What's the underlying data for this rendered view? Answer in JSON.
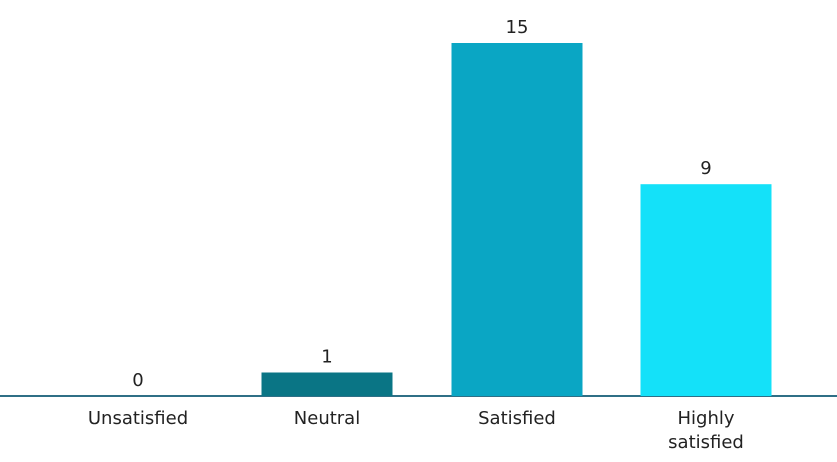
{
  "chart_data": {
    "type": "bar",
    "categories": [
      [
        "Unsatisfied"
      ],
      [
        "Neutral"
      ],
      [
        "Satisfied"
      ],
      [
        "Highly",
        "satisfied"
      ]
    ],
    "values": [
      0,
      1,
      15,
      9
    ],
    "value_labels": [
      "0",
      "1",
      "15",
      "9"
    ],
    "bar_colors": [
      "#0b7a8c",
      "#0a7585",
      "#0aa6c4",
      "#14e1f9"
    ],
    "axis_color": "#2f6f86",
    "title": "",
    "xlabel": "",
    "ylabel": "",
    "ylim": [
      0,
      15
    ],
    "grid": false
  }
}
